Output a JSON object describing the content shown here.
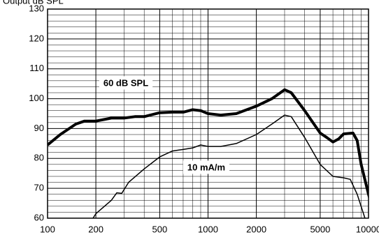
{
  "chart_data": {
    "type": "line",
    "ylabel": "Output dB SPL",
    "xscale": "log",
    "xlim": [
      100,
      10000
    ],
    "ylim": [
      60,
      130
    ],
    "xticks": [
      100,
      200,
      500,
      1000,
      2000,
      5000,
      10000
    ],
    "yticks": [
      60,
      70,
      80,
      90,
      100,
      110,
      120,
      130
    ],
    "x_minor_grid": [
      300,
      400,
      600,
      700,
      800,
      900,
      3000,
      4000,
      6000,
      7000,
      8000,
      9000
    ],
    "y_minor_grid": [
      62,
      64,
      66,
      68,
      72,
      74,
      76,
      78,
      82,
      84,
      86,
      88,
      92,
      94,
      96,
      98,
      102,
      104,
      106,
      108,
      112,
      114,
      116,
      118,
      122,
      124,
      126,
      128
    ],
    "grid": true,
    "series": [
      {
        "name": "60 dB SPL",
        "color": "#000000",
        "width": 4,
        "x": [
          100,
          120,
          150,
          170,
          200,
          250,
          300,
          350,
          400,
          500,
          600,
          700,
          800,
          900,
          1000,
          1200,
          1500,
          2000,
          2500,
          3000,
          3300,
          4000,
          5000,
          5500,
          6000,
          6500,
          7000,
          8000,
          8500,
          9000,
          10000,
          10500
        ],
        "values": [
          84.5,
          88,
          91.5,
          92.5,
          92.5,
          93.5,
          93.5,
          94,
          94,
          95.3,
          95.5,
          95.5,
          96.3,
          96,
          95,
          94.5,
          95,
          97.5,
          100,
          103,
          102,
          96,
          88.5,
          87,
          85.5,
          86.5,
          88.2,
          88.5,
          86,
          78,
          68,
          64
        ]
      },
      {
        "name": "10 mA/m",
        "color": "#000000",
        "width": 1.5,
        "x": [
          192,
          200,
          250,
          270,
          290,
          320,
          400,
          500,
          600,
          700,
          800,
          900,
          1000,
          1200,
          1500,
          2000,
          2500,
          3000,
          3300,
          4000,
          5000,
          6000,
          7000,
          7700,
          8500,
          9500
        ],
        "values": [
          60,
          61.5,
          66,
          68.5,
          68.3,
          72,
          76.5,
          80.5,
          82.5,
          83,
          83.5,
          84.5,
          84,
          84,
          85,
          88,
          91.5,
          94.5,
          94,
          87,
          78,
          74,
          73.5,
          73,
          68,
          60
        ]
      }
    ]
  }
}
